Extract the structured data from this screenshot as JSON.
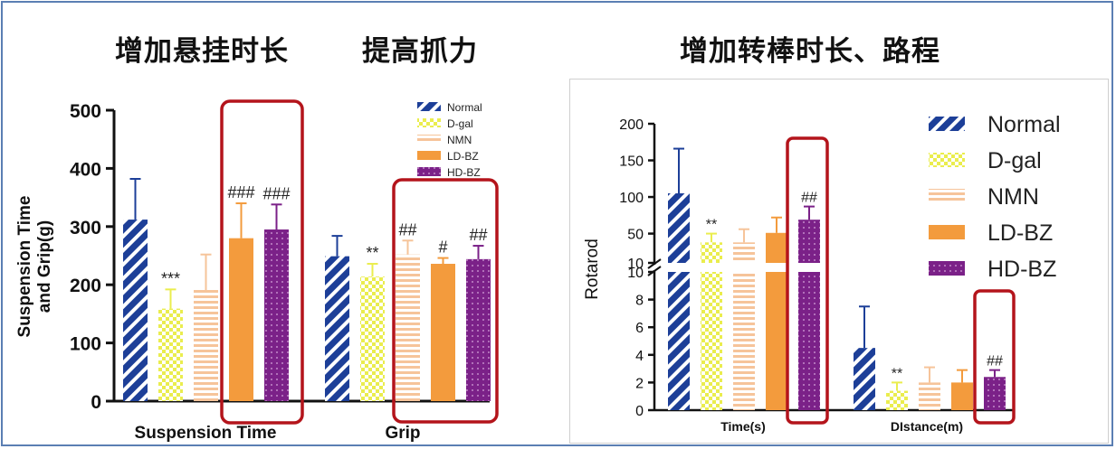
{
  "headings": {
    "left_a": "增加悬挂时长",
    "left_b": "提高抓力",
    "right": "增加转棒时长、路程"
  },
  "colors": {
    "Normal": "#1d3f98",
    "D-gal": "#eaed4e",
    "NMN": "#f6c49a",
    "LD-BZ": "#f39b3d",
    "HD-BZ": "#7b2188",
    "highlight_box": "#b4141b",
    "axis": "#111111"
  },
  "legend": [
    "Normal",
    "D-gal",
    "NMN",
    "LD-BZ",
    "HD-BZ"
  ],
  "chart_data": [
    {
      "type": "bar",
      "title": "",
      "ylabel": "Suspension Time and Grip(g)",
      "xlabel": "",
      "ylim": [
        0,
        500
      ],
      "yticks": [
        0,
        100,
        200,
        300,
        400,
        500
      ],
      "categories": [
        "Suspension Time",
        "Grip"
      ],
      "legend_position": "top-right",
      "series": [
        {
          "name": "Normal",
          "values": [
            312,
            249
          ],
          "errors": [
            70,
            35
          ],
          "labels": [
            "",
            ""
          ]
        },
        {
          "name": "D-gal",
          "values": [
            159,
            214
          ],
          "errors": [
            33,
            22
          ],
          "labels": [
            "***",
            "**"
          ]
        },
        {
          "name": "NMN",
          "values": [
            191,
            252
          ],
          "errors": [
            61,
            24
          ],
          "labels": [
            "",
            "##"
          ]
        },
        {
          "name": "LD-BZ",
          "values": [
            280,
            236
          ],
          "errors": [
            60,
            10
          ],
          "labels": [
            "###",
            "#"
          ]
        },
        {
          "name": "HD-BZ",
          "values": [
            295,
            244
          ],
          "errors": [
            43,
            23
          ],
          "labels": [
            "###",
            "##"
          ]
        }
      ]
    },
    {
      "type": "bar",
      "title": "",
      "ylabel": "Rotarod",
      "xlabel": "",
      "y_axis_break": {
        "lower": [
          0,
          10
        ],
        "upper": [
          10,
          200
        ]
      },
      "yticks_lower": [
        0,
        2,
        4,
        6,
        8,
        10
      ],
      "yticks_upper": [
        10,
        50,
        100,
        150,
        200
      ],
      "categories": [
        "Time(s)",
        "DIstance(m)"
      ],
      "legend_position": "top-right",
      "series": [
        {
          "name": "Normal",
          "values": [
            105,
            4.5
          ],
          "errors": [
            61,
            3.0
          ],
          "labels": [
            "",
            ""
          ]
        },
        {
          "name": "D-gal",
          "values": [
            38,
            1.4
          ],
          "errors": [
            12,
            0.6
          ],
          "labels": [
            "**",
            "**"
          ]
        },
        {
          "name": "NMN",
          "values": [
            38,
            2.0
          ],
          "errors": [
            18,
            1.1
          ],
          "labels": [
            "",
            ""
          ]
        },
        {
          "name": "LD-BZ",
          "values": [
            51,
            2.0
          ],
          "errors": [
            21,
            0.9
          ],
          "labels": [
            "",
            ""
          ]
        },
        {
          "name": "HD-BZ",
          "values": [
            69,
            2.4
          ],
          "errors": [
            18,
            0.5
          ],
          "labels": [
            "##",
            "##"
          ]
        }
      ]
    }
  ]
}
